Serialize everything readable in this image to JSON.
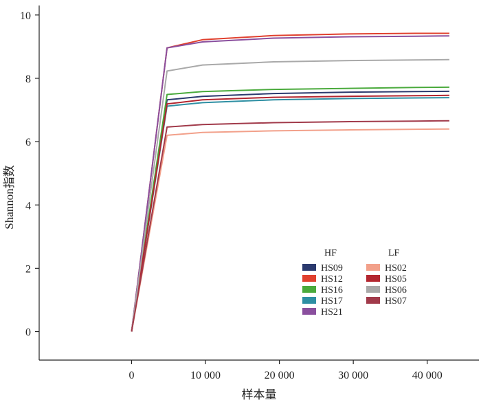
{
  "chart_data": {
    "type": "line",
    "xlabel": "样本量",
    "ylabel": "Shannon指数",
    "xlim": [
      -12500,
      47000
    ],
    "ylim": [
      -0.9,
      10.3
    ],
    "x_ticks": [
      0,
      10000,
      20000,
      30000,
      40000
    ],
    "x_tick_labels": [
      "0",
      "10 000",
      "20 000",
      "30 000",
      "40 000"
    ],
    "y_ticks": [
      0,
      2,
      4,
      6,
      8,
      10
    ],
    "y_tick_labels": [
      "0",
      "2",
      "4",
      "6",
      "8",
      "10"
    ],
    "x": [
      0,
      4800,
      9600,
      19200,
      28800,
      38400,
      43000
    ],
    "legend": {
      "groups": [
        {
          "title": "HF",
          "items": [
            "HS09",
            "HS12",
            "HS16",
            "HS17",
            "HS21"
          ]
        },
        {
          "title": "LF",
          "items": [
            "HS02",
            "HS05",
            "HS06",
            "HS07"
          ]
        }
      ]
    },
    "series": [
      {
        "name": "HS09",
        "color": "#2b3a6e",
        "values": [
          0,
          7.32,
          7.43,
          7.52,
          7.56,
          7.58,
          7.59
        ]
      },
      {
        "name": "HS12",
        "color": "#e0402e",
        "values": [
          0,
          8.96,
          9.22,
          9.35,
          9.4,
          9.42,
          9.42
        ]
      },
      {
        "name": "HS16",
        "color": "#4aaa3c",
        "values": [
          0,
          7.49,
          7.58,
          7.65,
          7.68,
          7.71,
          7.72
        ]
      },
      {
        "name": "HS17",
        "color": "#2e8fa3",
        "values": [
          0,
          7.12,
          7.23,
          7.32,
          7.36,
          7.38,
          7.39
        ]
      },
      {
        "name": "HS21",
        "color": "#8a4f9e",
        "values": [
          0,
          8.96,
          9.15,
          9.27,
          9.31,
          9.33,
          9.34
        ]
      },
      {
        "name": "HS02",
        "color": "#f2a08a",
        "values": [
          0,
          6.2,
          6.29,
          6.34,
          6.37,
          6.39,
          6.4
        ]
      },
      {
        "name": "HS05",
        "color": "#b3262f",
        "values": [
          0,
          7.19,
          7.32,
          7.4,
          7.43,
          7.45,
          7.46
        ]
      },
      {
        "name": "HS06",
        "color": "#a9a9a9",
        "values": [
          0,
          8.23,
          8.42,
          8.52,
          8.56,
          8.58,
          8.59
        ]
      },
      {
        "name": "HS07",
        "color": "#a13a4a",
        "values": [
          0,
          6.46,
          6.54,
          6.6,
          6.63,
          6.65,
          6.66
        ]
      }
    ]
  }
}
